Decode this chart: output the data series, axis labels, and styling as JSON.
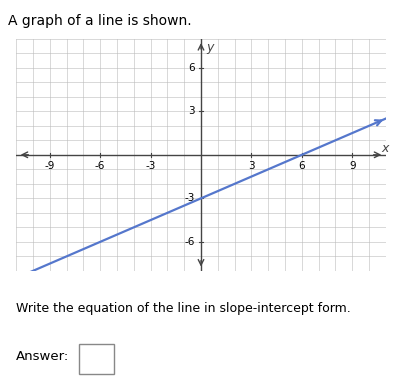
{
  "title": "A graph of a line is shown.",
  "subtitle": "Write the equation of the line in slope-intercept form.",
  "answer_label": "Answer:",
  "slope": 0.5,
  "intercept": -3,
  "x_range": [
    -11,
    11
  ],
  "y_range": [
    -8,
    8
  ],
  "x_ticks": [
    -9,
    -6,
    -3,
    3,
    6,
    9
  ],
  "y_ticks": [
    -6,
    -3,
    3,
    6
  ],
  "line_color": "#5577cc",
  "grid_color": "#bbbbbb",
  "axis_color": "#444444",
  "bg_color": "#f0f0f0",
  "title_fontsize": 10,
  "tick_fontsize": 7.5,
  "axis_label_fontsize": 9
}
